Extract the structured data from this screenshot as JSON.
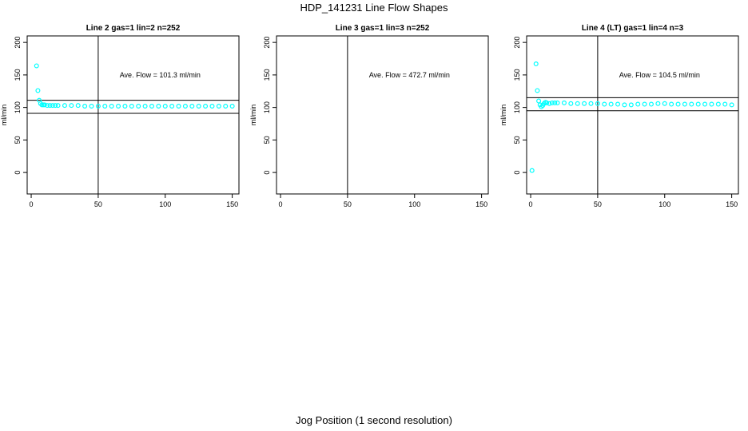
{
  "title": "HDP_141231  Line Flow Shapes",
  "xlabel": "Jog Position (1 second resolution)",
  "colors": {
    "points": "#00ffff",
    "axes": "#000000"
  },
  "chart_data": [
    {
      "type": "scatter",
      "title": "Line 2 gas=1 lin=2 n=252",
      "ylabel": "ml/min",
      "xlim": [
        -3,
        155
      ],
      "ylim": [
        -33,
        210
      ],
      "xticks": [
        0,
        50,
        100,
        150
      ],
      "yticks": [
        0,
        50,
        100,
        150,
        200
      ],
      "vline": 50,
      "hlines": [
        111,
        91
      ],
      "annotation": "Ave. Flow =  101.3  ml/min",
      "x": [
        4,
        5,
        6,
        7,
        8,
        9,
        10,
        12,
        14,
        16,
        18,
        20,
        25,
        30,
        35,
        40,
        45,
        50,
        55,
        60,
        65,
        70,
        75,
        80,
        85,
        90,
        95,
        100,
        105,
        110,
        115,
        120,
        125,
        130,
        135,
        140,
        145,
        150
      ],
      "y": [
        164,
        126,
        111,
        106,
        104,
        104,
        104,
        103,
        103,
        103,
        103,
        103,
        103,
        103,
        103,
        102,
        102,
        102,
        102,
        102,
        102,
        102,
        102,
        102,
        102,
        102,
        102,
        102,
        102,
        102,
        102,
        102,
        102,
        102,
        102,
        102,
        102,
        102
      ]
    },
    {
      "type": "scatter",
      "title": "Line 3 gas=1 lin=3 n=252",
      "ylabel": "ml/min",
      "xlim": [
        -3,
        155
      ],
      "ylim": [
        -33,
        210
      ],
      "xticks": [
        0,
        50,
        100,
        150
      ],
      "yticks": [
        0,
        50,
        100,
        150,
        200
      ],
      "vline": 50,
      "hlines": [],
      "annotation": "Ave. Flow =  472.7  ml/min",
      "x": [],
      "y": []
    },
    {
      "type": "scatter",
      "title": "Line 4 (LT) gas=1 lin=4 n=3",
      "ylabel": "ml/min",
      "xlim": [
        -3,
        155
      ],
      "ylim": [
        -33,
        210
      ],
      "xticks": [
        0,
        50,
        100,
        150
      ],
      "yticks": [
        0,
        50,
        100,
        150,
        200
      ],
      "vline": 50,
      "hlines": [
        115,
        95
      ],
      "annotation": "Ave. Flow =  104.5  ml/min",
      "x": [
        1,
        4,
        5,
        6,
        7,
        8,
        9,
        10,
        11,
        12,
        14,
        16,
        18,
        20,
        25,
        30,
        35,
        40,
        45,
        50,
        55,
        60,
        65,
        70,
        75,
        80,
        85,
        90,
        95,
        100,
        105,
        110,
        115,
        120,
        125,
        130,
        135,
        140,
        145,
        150
      ],
      "y": [
        3,
        167,
        126,
        110,
        104,
        101,
        103,
        106,
        108,
        107,
        106,
        107,
        107,
        107,
        107,
        106,
        106,
        106,
        106,
        106,
        105,
        105,
        105,
        104,
        104,
        105,
        105,
        105,
        106,
        106,
        105,
        105,
        105,
        105,
        105,
        105,
        105,
        105,
        105,
        104
      ]
    }
  ]
}
